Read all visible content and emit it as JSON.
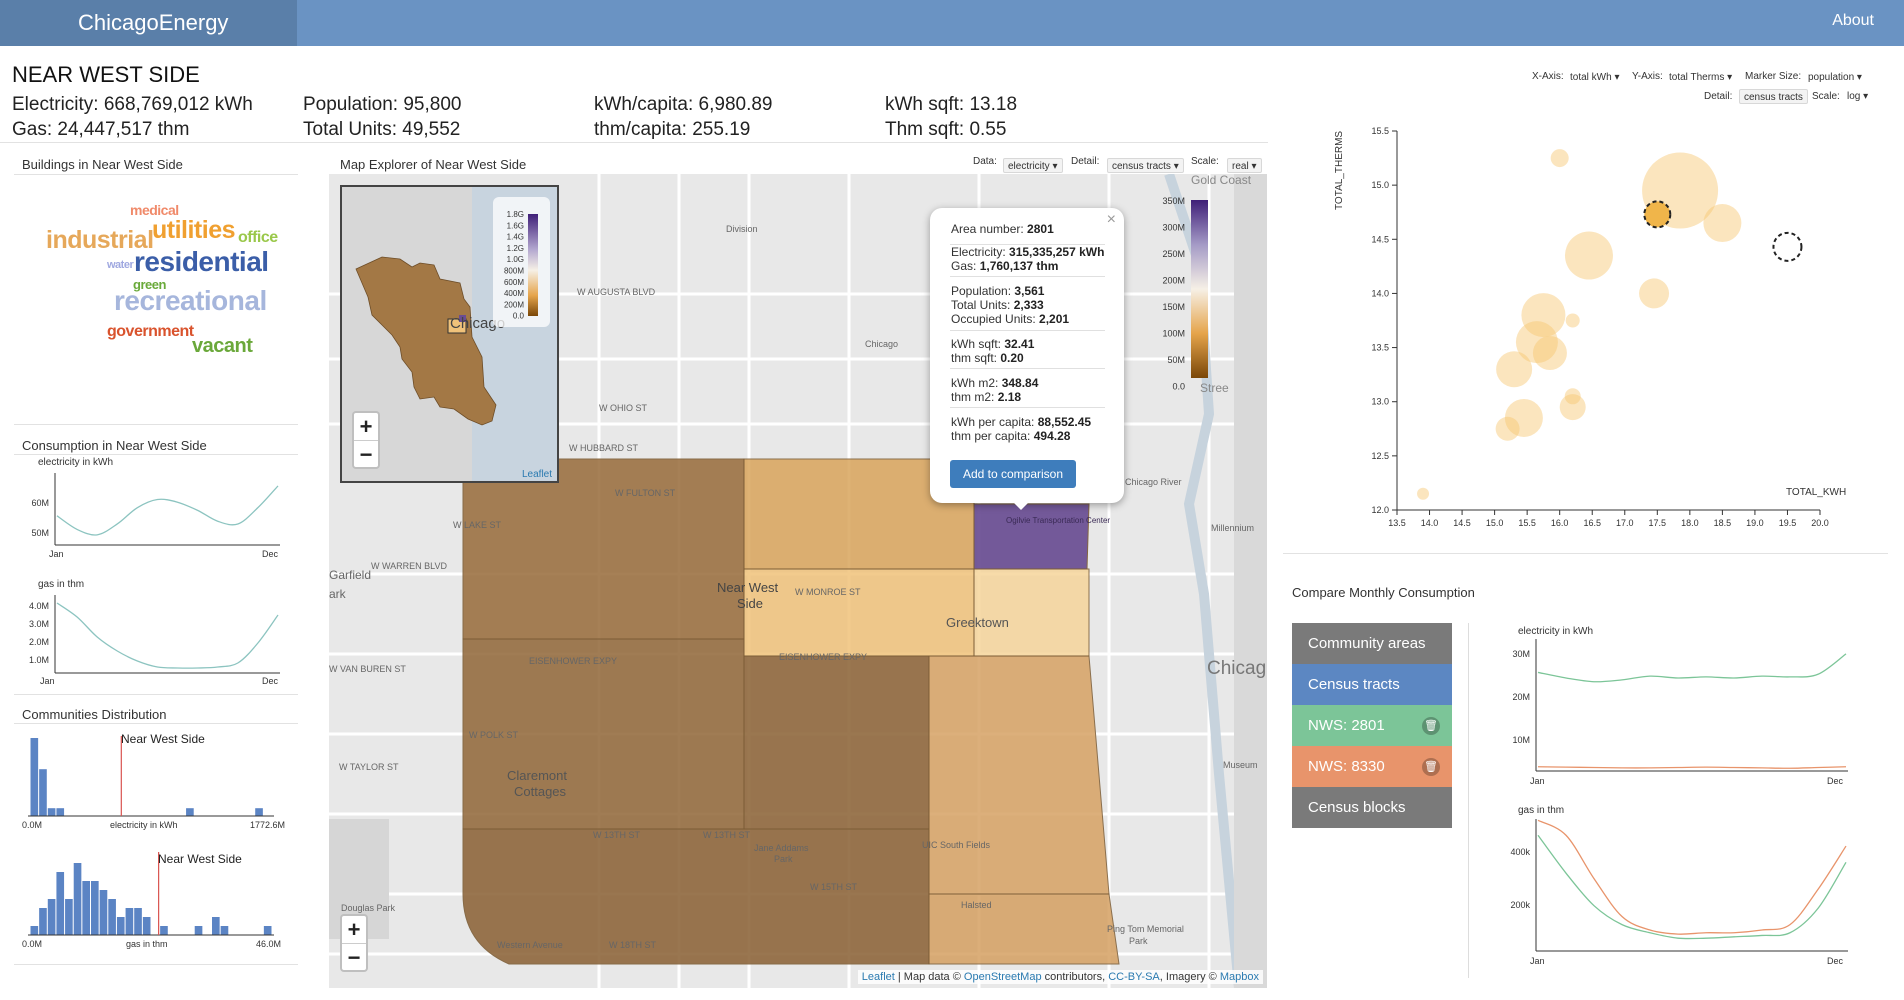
{
  "app": {
    "brand": "ChicagoEnergy",
    "about": "About"
  },
  "area": {
    "name": "NEAR WEST SIDE",
    "electricity": "Electricity: 668,769,012 kWh",
    "gas": "Gas: 24,447,517 thm",
    "population": "Population: 95,800",
    "total_units": "Total Units: 49,552",
    "kwh_capita": "kWh/capita: 6,980.89",
    "thm_capita": "thm/capita: 255.19",
    "kwh_sqft": "kWh sqft: 13.18",
    "thm_sqft": "Thm sqft: 0.55"
  },
  "buildings": {
    "title": "Buildings in Near West Side",
    "words": [
      {
        "text": "medical",
        "color": "#f08a6a"
      },
      {
        "text": "industrial",
        "color": "#e6a85a"
      },
      {
        "text": "utilities",
        "color": "#f0a030"
      },
      {
        "text": "office",
        "color": "#9ac84a"
      },
      {
        "text": "water",
        "color": "#9fa8e0"
      },
      {
        "text": "residential",
        "color": "#3b5ea8"
      },
      {
        "text": "green",
        "color": "#6aaa3a"
      },
      {
        "text": "recreational",
        "color": "#a6b6dc"
      },
      {
        "text": "government",
        "color": "#d9532d"
      },
      {
        "text": "vacant",
        "color": "#6aa83a"
      }
    ]
  },
  "consumption": {
    "title": "Consumption in Near West Side",
    "elec_label": "electricity in kWh",
    "elec_ticks": [
      "60M",
      "50M"
    ],
    "gas_label": "gas in thm",
    "gas_ticks": [
      "4.0M",
      "3.0M",
      "2.0M",
      "1.0M"
    ],
    "x_start": "Jan",
    "x_end": "Dec"
  },
  "distribution": {
    "title": "Communities Distribution",
    "elec_marker": "Near West Side",
    "elec_xlabel": "electricity in kWh",
    "elec_min": "0.0M",
    "elec_max": "1772.6M",
    "gas_marker": "Near West Side",
    "gas_xlabel": "gas in thm",
    "gas_min": "0.0M",
    "gas_max": "46.0M"
  },
  "map": {
    "title": "Map Explorer of Near West Side",
    "data_label": "Data:",
    "data_value": "electricity",
    "detail_label": "Detail:",
    "detail_value": "census tracts",
    "scale_label": "Scale:",
    "scale_value": "real",
    "labels": {
      "gold_coast": "Gold Coast",
      "division": "Division",
      "w_augusta": "W AUGUSTA BLVD",
      "w_ohio": "W OHIO ST",
      "w_hubbard": "W HUBBARD ST",
      "w_fulton": "W FULTON ST",
      "w_lake": "W LAKE ST",
      "w_warren": "W WARREN BLVD",
      "w_monroe": "W MONROE ST",
      "near_west": "Near West",
      "side": "Side",
      "greektown": "Greektown",
      "eisenhower": "EISENHOWER EXPY",
      "w_polk": "W POLK ST",
      "w_taylor": "W TAYLOR ST",
      "claremont": "Claremont",
      "cottages": "Cottages",
      "w_13th": "W 13TH ST",
      "jane_addams": "Jane Addams",
      "park": "Park",
      "uic": "UIC South Fields",
      "halsted": "Halsted",
      "w_15th": "W 15TH ST",
      "w_18th": "W 18TH ST",
      "western": "Western Avenue",
      "douglas": "Douglas Park",
      "ping_tom": "Ping Tom Memorial",
      "chicago": "Chicag",
      "chicago_river": "Chicago River",
      "millennium": "Millennium",
      "ogilvie": "Ogilvie Transportation Center",
      "garfield": "Garfield",
      "ark": "ark",
      "w_van_buren": "W VAN BUREN ST",
      "chicago_small": "Chicago",
      "museum": "Museum",
      "stree": "Stree",
      "inset_city": "Chicago"
    },
    "legend": [
      "350M",
      "300M",
      "250M",
      "200M",
      "150M",
      "100M",
      "50M",
      "0.0"
    ],
    "inset_legend": [
      "1.8G",
      "1.6G",
      "1.4G",
      "1.2G",
      "1.0G",
      "800M",
      "600M",
      "400M",
      "200M",
      "0.0"
    ],
    "zoom_in": "+",
    "zoom_out": "−",
    "inset_attribution": "Leaflet",
    "attribution": {
      "leaflet": "Leaflet",
      "map_data": "| Map data ©",
      "osm": "OpenStreetMap",
      "contrib": "contributors,",
      "cc": "CC-BY-SA",
      "imagery": ", Imagery ©",
      "mapbox": "Mapbox"
    },
    "popup": {
      "close": "×",
      "area_label": "Area number:",
      "area_value": "2801",
      "elec_label": "Electricity:",
      "elec_value": "315,335,257 kWh",
      "gas_label": "Gas:",
      "gas_value": "1,760,137 thm",
      "pop_label": "Population:",
      "pop_value": "3,561",
      "units_label": "Total Units:",
      "units_value": "2,333",
      "occ_label": "Occupied Units:",
      "occ_value": "2,201",
      "kwh_sqft_label": "kWh sqft:",
      "kwh_sqft_value": "32.41",
      "thm_sqft_label": "thm sqft:",
      "thm_sqft_value": "0.20",
      "kwh_m2_label": "kWh m2:",
      "kwh_m2_value": "348.84",
      "thm_m2_label": "thm m2:",
      "thm_m2_value": "2.18",
      "kwh_pc_label": "kWh per capita:",
      "kwh_pc_value": "88,552.45",
      "thm_pc_label": "thm per capita:",
      "thm_pc_value": "494.28",
      "button": "Add to comparison"
    }
  },
  "scatter_controls": {
    "x_label": "X-Axis:",
    "x_value": "total kWh",
    "y_label": "Y-Axis:",
    "y_value": "total Therms",
    "size_label": "Marker Size:",
    "size_value": "population",
    "detail_label": "Detail:",
    "detail_value": "census tracts",
    "scale_label": "Scale:",
    "scale_value": "log"
  },
  "compare": {
    "title": "Compare Monthly Consumption",
    "items": [
      {
        "label": "Community areas",
        "color": "#7a7a7a",
        "trash": false
      },
      {
        "label": "Census tracts",
        "color": "#5c87c2",
        "trash": false
      },
      {
        "label": "NWS: 2801",
        "color": "#7cc598",
        "trash": true
      },
      {
        "label": "NWS: 8330",
        "color": "#e8946b",
        "trash": true
      },
      {
        "label": "Census blocks",
        "color": "#7a7a7a",
        "trash": false
      }
    ],
    "trash_icon": "🗑",
    "elec_label": "electricity in kWh",
    "elec_ticks": [
      "30M",
      "20M",
      "10M"
    ],
    "gas_label": "gas in thm",
    "gas_ticks": [
      "400k",
      "200k"
    ],
    "x_start": "Jan",
    "x_end": "Dec"
  },
  "chart_data": [
    {
      "type": "scatter",
      "xlabel": "TOTAL_KWH",
      "ylabel": "TOTAL_THERMS",
      "xlim": [
        13.5,
        20.0
      ],
      "ylim": [
        12.0,
        15.5
      ],
      "xticks": [
        "13.5",
        "14.0",
        "14.5",
        "15.0",
        "15.5",
        "16.0",
        "16.5",
        "17.0",
        "17.5",
        "18.0",
        "18.5",
        "19.0",
        "19.5",
        "20.0"
      ],
      "yticks": [
        "12.0",
        "12.5",
        "13.0",
        "13.5",
        "14.0",
        "14.5",
        "15.0",
        "15.5"
      ],
      "points": [
        {
          "x": 16.0,
          "y": 15.25,
          "s": 9
        },
        {
          "x": 17.85,
          "y": 14.95,
          "s": 38
        },
        {
          "x": 18.5,
          "y": 14.65,
          "s": 19
        },
        {
          "x": 16.45,
          "y": 14.35,
          "s": 24
        },
        {
          "x": 17.45,
          "y": 14.0,
          "s": 15
        },
        {
          "x": 15.75,
          "y": 13.8,
          "s": 22
        },
        {
          "x": 15.65,
          "y": 13.55,
          "s": 21
        },
        {
          "x": 15.85,
          "y": 13.45,
          "s": 17
        },
        {
          "x": 16.2,
          "y": 13.75,
          "s": 7
        },
        {
          "x": 15.3,
          "y": 13.3,
          "s": 18
        },
        {
          "x": 16.2,
          "y": 13.05,
          "s": 8
        },
        {
          "x": 16.2,
          "y": 12.95,
          "s": 13
        },
        {
          "x": 15.45,
          "y": 12.85,
          "s": 19
        },
        {
          "x": 15.2,
          "y": 12.75,
          "s": 12
        },
        {
          "x": 13.9,
          "y": 12.15,
          "s": 6
        },
        {
          "x": 17.5,
          "y": 14.73,
          "s": 13,
          "highlight": "filled"
        },
        {
          "x": 19.5,
          "y": 14.43,
          "s": 14,
          "highlight": "empty"
        }
      ]
    },
    {
      "type": "line",
      "title": "electricity in kWh",
      "x": [
        "Jan",
        "Feb",
        "Mar",
        "Apr",
        "May",
        "Jun",
        "Jul",
        "Aug",
        "Sep",
        "Oct",
        "Nov",
        "Dec"
      ],
      "ylim": [
        45,
        70
      ],
      "series": [
        {
          "values": [
            55,
            50,
            48,
            52,
            58,
            61,
            60,
            57,
            53,
            52,
            58,
            66
          ]
        }
      ]
    },
    {
      "type": "line",
      "title": "gas in thm",
      "x": [
        "Jan",
        "Feb",
        "Mar",
        "Apr",
        "May",
        "Jun",
        "Jul",
        "Aug",
        "Sep",
        "Oct",
        "Nov",
        "Dec"
      ],
      "ylim": [
        0.8,
        4.5
      ],
      "series": [
        {
          "values": [
            4.2,
            3.5,
            2.5,
            1.8,
            1.3,
            1.0,
            0.95,
            0.95,
            1.0,
            1.2,
            2.2,
            3.6
          ]
        }
      ]
    },
    {
      "type": "bar",
      "title": "Communities Distribution — electricity in kWh",
      "xlim": [
        0.0,
        1772.6
      ],
      "values": [
        10,
        6,
        1,
        1,
        0,
        0,
        0,
        0,
        0,
        0,
        0,
        0,
        0,
        0,
        0,
        0,
        0,
        0,
        1,
        0,
        0,
        0,
        0,
        0,
        0,
        0,
        1,
        0
      ],
      "marker": 668.8
    },
    {
      "type": "bar",
      "title": "Communities Distribution — gas in thm",
      "xlim": [
        0.0,
        46.0
      ],
      "values": [
        1,
        3,
        4,
        7,
        4,
        8,
        6,
        6,
        5,
        4,
        2,
        3,
        3,
        2,
        0,
        1,
        0,
        0,
        0,
        1,
        0,
        2,
        1,
        0,
        0,
        0,
        0,
        1
      ],
      "marker": 24.45
    },
    {
      "type": "line",
      "title": "electricity in kWh",
      "x": [
        "Jan",
        "Feb",
        "Mar",
        "Apr",
        "May",
        "Jun",
        "Jul",
        "Aug",
        "Sep",
        "Oct",
        "Nov",
        "Dec"
      ],
      "ylim": [
        0,
        35
      ],
      "series": [
        {
          "color": "#7cc598",
          "values": [
            26,
            24.5,
            23.5,
            24,
            25,
            24.5,
            24.8,
            24.5,
            25,
            24.8,
            25.5,
            31
          ]
        },
        {
          "color": "#e8946b",
          "values": [
            0.6,
            0.5,
            0.4,
            0.3,
            0.3,
            0.4,
            0.5,
            0.4,
            0.3,
            0.2,
            0.4,
            0.6
          ]
        }
      ]
    },
    {
      "type": "line",
      "title": "gas in thm",
      "x": [
        "Jan",
        "Feb",
        "Mar",
        "Apr",
        "May",
        "Jun",
        "Jul",
        "Aug",
        "Sep",
        "Oct",
        "Nov",
        "Dec"
      ],
      "ylim": [
        0,
        480
      ],
      "series": [
        {
          "color": "#7cc598",
          "values": [
            420,
            280,
            160,
            90,
            60,
            40,
            40,
            45,
            50,
            60,
            150,
            320
          ]
        },
        {
          "color": "#e8946b",
          "values": [
            475,
            420,
            260,
            120,
            70,
            55,
            60,
            60,
            70,
            90,
            220,
            380
          ]
        }
      ]
    }
  ]
}
